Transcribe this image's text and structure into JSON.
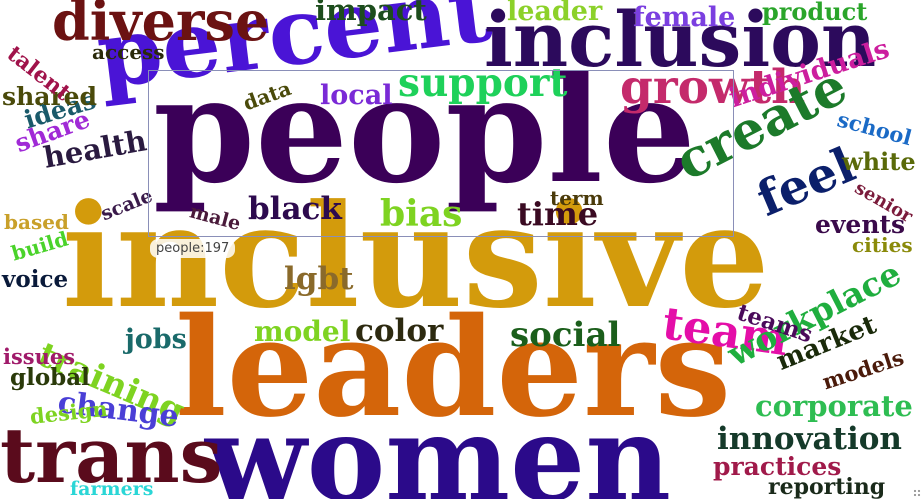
{
  "wordcloud": {
    "words": [
      {
        "text": "inclusive",
        "color": "#d39b0c"
      },
      {
        "text": "people",
        "color": "#3b0058"
      },
      {
        "text": "leaders",
        "color": "#d4650a"
      },
      {
        "text": "women",
        "color": "#2b0a8a"
      },
      {
        "text": "percent",
        "color": "#4a14d6"
      },
      {
        "text": "inclusion",
        "color": "#2c0a5c"
      },
      {
        "text": "trans",
        "color": "#5a0b1c"
      },
      {
        "text": "diverse",
        "color": "#6b1212"
      },
      {
        "text": "growth",
        "color": "#c42a6b"
      },
      {
        "text": "create",
        "color": "#1c7a2a"
      },
      {
        "text": "team",
        "color": "#e40ea8"
      },
      {
        "text": "feel",
        "color": "#0b1f6b"
      },
      {
        "text": "support",
        "color": "#1ed15a"
      },
      {
        "text": "training",
        "color": "#7ed321"
      },
      {
        "text": "workplace",
        "color": "#1fae3e"
      },
      {
        "text": "innovation",
        "color": "#153a2a"
      },
      {
        "text": "social",
        "color": "#1b5e1b"
      },
      {
        "text": "black",
        "color": "#2d0a4e"
      },
      {
        "text": "bias",
        "color": "#7ed321"
      },
      {
        "text": "time",
        "color": "#3a0a22"
      },
      {
        "text": "impact",
        "color": "#1d4d1d"
      },
      {
        "text": "leader",
        "color": "#8cd12a"
      },
      {
        "text": "female",
        "color": "#7b3fe0"
      },
      {
        "text": "product",
        "color": "#2aa52a"
      },
      {
        "text": "individuals",
        "color": "#cc1e9e"
      },
      {
        "text": "corporate",
        "color": "#2ebd52"
      },
      {
        "text": "change",
        "color": "#4a3fd6"
      },
      {
        "text": "color",
        "color": "#2d2a10"
      },
      {
        "text": "model",
        "color": "#7ed321"
      },
      {
        "text": "lgbt",
        "color": "#8a6a2a"
      },
      {
        "text": "health",
        "color": "#2a1a40"
      },
      {
        "text": "market",
        "color": "#1a2a0a"
      },
      {
        "text": "practices",
        "color": "#a01a4a"
      },
      {
        "text": "events",
        "color": "#3a0a4a"
      },
      {
        "text": "jobs",
        "color": "#1a6a6a"
      },
      {
        "text": "local",
        "color": "#7a2ad6"
      },
      {
        "text": "teams",
        "color": "#4a0a5a"
      },
      {
        "text": "ideas",
        "color": "#1a5a6a"
      },
      {
        "text": "share",
        "color": "#a02ad6"
      },
      {
        "text": "shared",
        "color": "#4a4a0a"
      },
      {
        "text": "white",
        "color": "#5a6a0a"
      },
      {
        "text": "school",
        "color": "#1a6ac6"
      },
      {
        "text": "talent",
        "color": "#a0124a"
      },
      {
        "text": "voice",
        "color": "#0a1a3a"
      },
      {
        "text": "global",
        "color": "#2a3a0a"
      },
      {
        "text": "models",
        "color": "#4a1a0a"
      },
      {
        "text": "reporting",
        "color": "#1a2a1a"
      },
      {
        "text": "issues",
        "color": "#a01a6a"
      },
      {
        "text": "design",
        "color": "#7ed321"
      },
      {
        "text": "cities",
        "color": "#8a8a0a"
      },
      {
        "text": "data",
        "color": "#4a4a0a"
      },
      {
        "text": "access",
        "color": "#2a2a0a"
      },
      {
        "text": "senior",
        "color": "#7a1a3a"
      },
      {
        "text": "build",
        "color": "#4ad32a"
      },
      {
        "text": "based",
        "color": "#c9a02a"
      },
      {
        "text": "scale",
        "color": "#3a1a4a"
      },
      {
        "text": "term",
        "color": "#4a3a0a"
      },
      {
        "text": "male",
        "color": "#4a1a3a"
      },
      {
        "text": "farmers",
        "color": "#2ad6d6"
      }
    ]
  },
  "tooltip": {
    "text": "people:197"
  }
}
